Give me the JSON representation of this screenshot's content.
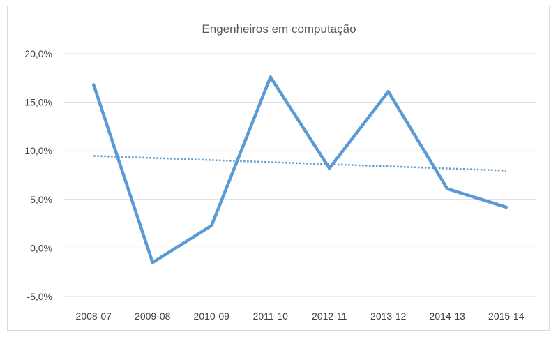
{
  "chart_data": {
    "type": "line",
    "title": "Engenheiros em computação",
    "xlabel": "",
    "ylabel": "",
    "categories": [
      "2008-07",
      "2009-08",
      "2010-09",
      "2011-10",
      "2012-11",
      "2013-12",
      "2014-13",
      "2015-14"
    ],
    "series": [
      {
        "values": [
          16.8,
          -1.5,
          2.3,
          17.6,
          8.2,
          16.1,
          6.1,
          4.2
        ],
        "color": "#5B9BD5",
        "style": "solid"
      }
    ],
    "trendline": {
      "type": "linear",
      "color": "#5B9BD5",
      "style": "dotted"
    },
    "ylim": [
      -5,
      20
    ],
    "yticks": [
      -5,
      0,
      5,
      10,
      15,
      20
    ],
    "ytick_labels": [
      "-5,0%",
      "0,0%",
      "5,0%",
      "10,0%",
      "15,0%",
      "20,0%"
    ],
    "grid": "horizontal",
    "legend": "none",
    "colors": {
      "line": "#5B9BD5",
      "grid": "#d9d9d9",
      "text": "#404040"
    }
  }
}
